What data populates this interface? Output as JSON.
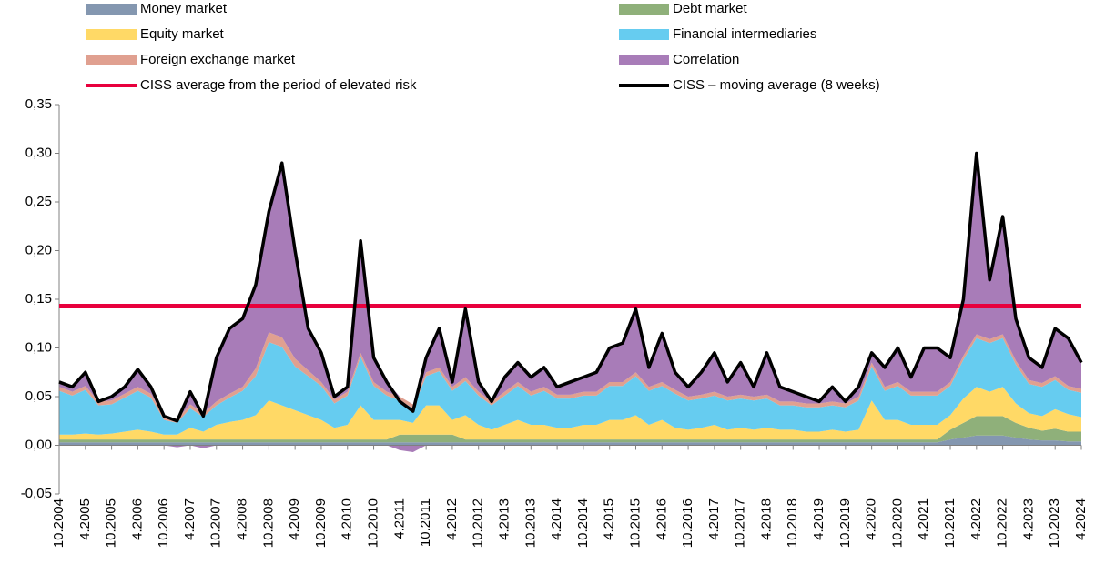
{
  "chart_data": {
    "type": "stacked_area",
    "categories": [
      "10.2004",
      null,
      "4.2005",
      null,
      "10.2005",
      null,
      "4.2006",
      null,
      "10.2006",
      null,
      "4.2007",
      null,
      "10.2007",
      null,
      "4.2008",
      null,
      "10.2008",
      null,
      "4.2009",
      null,
      "10.2009",
      null,
      "4.2010",
      null,
      "10.2010",
      null,
      "4.2011",
      null,
      "10.2011",
      null,
      "4.2012",
      null,
      "10.2012",
      null,
      "4.2013",
      null,
      "10.2013",
      null,
      "4.2014",
      null,
      "10.2014",
      null,
      "4.2015",
      null,
      "10.2015",
      null,
      "4.2016",
      null,
      "10.2016",
      null,
      "4.2017",
      null,
      "10.2017",
      null,
      "4.2018",
      null,
      "10.2018",
      null,
      "4.2019",
      null,
      "10.2019",
      null,
      "4.2020",
      null,
      "10.2020",
      null,
      "4.2021",
      null,
      "10.2021",
      null,
      "4.2022",
      null,
      "10.2022",
      null,
      "4.2023",
      null,
      "10.2023",
      null,
      "4.2024"
    ],
    "series": [
      {
        "name": "Money market",
        "color": "#8497b0",
        "values": [
          0.003,
          0.003,
          0.003,
          0.003,
          0.003,
          0.003,
          0.003,
          0.003,
          0.003,
          0.003,
          0.003,
          0.003,
          0.003,
          0.003,
          0.003,
          0.003,
          0.003,
          0.003,
          0.003,
          0.003,
          0.003,
          0.003,
          0.003,
          0.003,
          0.003,
          0.003,
          0.003,
          0.003,
          0.003,
          0.003,
          0.003,
          0.003,
          0.003,
          0.003,
          0.003,
          0.003,
          0.003,
          0.003,
          0.003,
          0.003,
          0.003,
          0.003,
          0.003,
          0.003,
          0.003,
          0.003,
          0.003,
          0.003,
          0.003,
          0.003,
          0.003,
          0.003,
          0.003,
          0.003,
          0.003,
          0.003,
          0.003,
          0.003,
          0.003,
          0.003,
          0.003,
          0.003,
          0.003,
          0.003,
          0.003,
          0.003,
          0.003,
          0.003,
          0.006,
          0.008,
          0.01,
          0.01,
          0.01,
          0.008,
          0.006,
          0.005,
          0.005,
          0.004,
          0.004
        ]
      },
      {
        "name": "Debt market",
        "color": "#8fb07a",
        "values": [
          0.003,
          0.003,
          0.003,
          0.003,
          0.003,
          0.003,
          0.003,
          0.003,
          0.003,
          0.003,
          0.003,
          0.003,
          0.003,
          0.003,
          0.003,
          0.003,
          0.003,
          0.003,
          0.003,
          0.003,
          0.003,
          0.003,
          0.003,
          0.003,
          0.003,
          0.003,
          0.008,
          0.008,
          0.008,
          0.008,
          0.008,
          0.003,
          0.003,
          0.003,
          0.003,
          0.003,
          0.003,
          0.003,
          0.003,
          0.003,
          0.003,
          0.003,
          0.003,
          0.003,
          0.003,
          0.003,
          0.003,
          0.003,
          0.003,
          0.003,
          0.003,
          0.003,
          0.003,
          0.003,
          0.003,
          0.003,
          0.003,
          0.003,
          0.003,
          0.003,
          0.003,
          0.003,
          0.003,
          0.003,
          0.003,
          0.003,
          0.003,
          0.003,
          0.01,
          0.015,
          0.02,
          0.02,
          0.02,
          0.015,
          0.012,
          0.01,
          0.012,
          0.01,
          0.01
        ]
      },
      {
        "name": "Equity market",
        "color": "#ffd966",
        "values": [
          0.005,
          0.005,
          0.006,
          0.005,
          0.006,
          0.008,
          0.01,
          0.008,
          0.005,
          0.005,
          0.012,
          0.008,
          0.015,
          0.018,
          0.02,
          0.025,
          0.04,
          0.035,
          0.03,
          0.025,
          0.02,
          0.012,
          0.015,
          0.035,
          0.02,
          0.02,
          0.015,
          0.012,
          0.03,
          0.03,
          0.015,
          0.025,
          0.015,
          0.01,
          0.015,
          0.02,
          0.015,
          0.015,
          0.012,
          0.012,
          0.015,
          0.015,
          0.02,
          0.02,
          0.025,
          0.015,
          0.02,
          0.012,
          0.01,
          0.012,
          0.015,
          0.01,
          0.012,
          0.01,
          0.012,
          0.01,
          0.01,
          0.008,
          0.008,
          0.01,
          0.008,
          0.01,
          0.04,
          0.02,
          0.02,
          0.015,
          0.015,
          0.015,
          0.015,
          0.025,
          0.03,
          0.025,
          0.03,
          0.02,
          0.015,
          0.015,
          0.02,
          0.018,
          0.015
        ]
      },
      {
        "name": "Financial intermediaries",
        "color": "#66ccf0",
        "values": [
          0.045,
          0.04,
          0.045,
          0.03,
          0.03,
          0.035,
          0.04,
          0.035,
          0.015,
          0.012,
          0.02,
          0.015,
          0.02,
          0.025,
          0.03,
          0.04,
          0.06,
          0.06,
          0.045,
          0.04,
          0.035,
          0.025,
          0.03,
          0.05,
          0.035,
          0.025,
          0.02,
          0.015,
          0.03,
          0.035,
          0.03,
          0.035,
          0.03,
          0.025,
          0.03,
          0.035,
          0.03,
          0.035,
          0.03,
          0.03,
          0.03,
          0.03,
          0.035,
          0.035,
          0.04,
          0.035,
          0.035,
          0.035,
          0.03,
          0.03,
          0.03,
          0.03,
          0.03,
          0.03,
          0.03,
          0.025,
          0.025,
          0.025,
          0.025,
          0.025,
          0.025,
          0.03,
          0.035,
          0.03,
          0.035,
          0.03,
          0.03,
          0.03,
          0.03,
          0.04,
          0.05,
          0.05,
          0.05,
          0.04,
          0.03,
          0.03,
          0.03,
          0.025,
          0.025
        ]
      },
      {
        "name": "Foreign exchange market",
        "color": "#e0a090",
        "values": [
          0.004,
          0.004,
          0.004,
          0.004,
          0.004,
          0.004,
          0.004,
          0.004,
          0.004,
          0.004,
          0.004,
          0.004,
          0.004,
          0.004,
          0.004,
          0.008,
          0.01,
          0.01,
          0.008,
          0.006,
          0.004,
          0.004,
          0.004,
          0.004,
          0.004,
          0.004,
          0.004,
          0.004,
          0.004,
          0.004,
          0.004,
          0.004,
          0.004,
          0.004,
          0.004,
          0.004,
          0.004,
          0.004,
          0.004,
          0.004,
          0.004,
          0.004,
          0.004,
          0.004,
          0.004,
          0.004,
          0.004,
          0.004,
          0.004,
          0.004,
          0.004,
          0.004,
          0.004,
          0.004,
          0.004,
          0.004,
          0.004,
          0.004,
          0.004,
          0.004,
          0.004,
          0.004,
          0.004,
          0.004,
          0.004,
          0.004,
          0.004,
          0.004,
          0.004,
          0.004,
          0.004,
          0.004,
          0.004,
          0.004,
          0.004,
          0.004,
          0.004,
          0.004,
          0.004
        ]
      },
      {
        "name": "Correlation",
        "color": "#a87cb8",
        "values": [
          0.005,
          0.005,
          0.014,
          0,
          0.004,
          0.007,
          0.018,
          0.007,
          0,
          -0.002,
          0.013,
          -0.003,
          0.045,
          0.067,
          0.07,
          0.086,
          0.124,
          0.179,
          0.111,
          0.043,
          0.03,
          0.003,
          0.005,
          0.115,
          0.025,
          0.01,
          -0.005,
          -0.007,
          0.015,
          0.04,
          0.005,
          0.07,
          0.01,
          0,
          0.015,
          0.02,
          0.015,
          0.02,
          0.008,
          0.013,
          0.015,
          0.02,
          0.035,
          0.04,
          0.065,
          0.02,
          0.05,
          0.018,
          0.01,
          0.023,
          0.04,
          0.015,
          0.033,
          0.01,
          0.043,
          0.015,
          0.01,
          0.007,
          0.002,
          0.015,
          0.002,
          0.01,
          0.01,
          0.02,
          0.035,
          0.015,
          0.045,
          0.045,
          0.025,
          0.058,
          0.186,
          0.061,
          0.121,
          0.043,
          0.023,
          0.016,
          0.049,
          0.049,
          0.027
        ]
      }
    ],
    "lines": [
      {
        "name": "CISS average from the period of elevated risk",
        "color": "#e8003d",
        "value": 0.143
      },
      {
        "name": "CISS – moving average (8 weeks)",
        "color": "#000000",
        "values": [
          0.065,
          0.06,
          0.075,
          0.045,
          0.05,
          0.06,
          0.078,
          0.06,
          0.03,
          0.025,
          0.055,
          0.03,
          0.09,
          0.12,
          0.13,
          0.165,
          0.24,
          0.29,
          0.2,
          0.12,
          0.095,
          0.05,
          0.06,
          0.21,
          0.09,
          0.065,
          0.045,
          0.035,
          0.09,
          0.12,
          0.065,
          0.14,
          0.065,
          0.045,
          0.07,
          0.085,
          0.07,
          0.08,
          0.06,
          0.065,
          0.07,
          0.075,
          0.1,
          0.105,
          0.14,
          0.08,
          0.115,
          0.075,
          0.06,
          0.075,
          0.095,
          0.065,
          0.085,
          0.06,
          0.095,
          0.06,
          0.055,
          0.05,
          0.045,
          0.06,
          0.045,
          0.06,
          0.095,
          0.08,
          0.1,
          0.07,
          0.1,
          0.1,
          0.09,
          0.15,
          0.3,
          0.17,
          0.235,
          0.13,
          0.09,
          0.08,
          0.12,
          0.11,
          0.085
        ]
      }
    ],
    "ylim": [
      -0.05,
      0.35
    ],
    "yticks": [
      {
        "value": -0.05,
        "label": "-0,05"
      },
      {
        "value": 0,
        "label": "0,00"
      },
      {
        "value": 0.05,
        "label": "0,05"
      },
      {
        "value": 0.1,
        "label": "0,10"
      },
      {
        "value": 0.15,
        "label": "0,15"
      },
      {
        "value": 0.2,
        "label": "0,20"
      },
      {
        "value": 0.25,
        "label": "0,25"
      },
      {
        "value": 0.3,
        "label": "0,30"
      },
      {
        "value": 0.35,
        "label": "0,35"
      }
    ]
  }
}
